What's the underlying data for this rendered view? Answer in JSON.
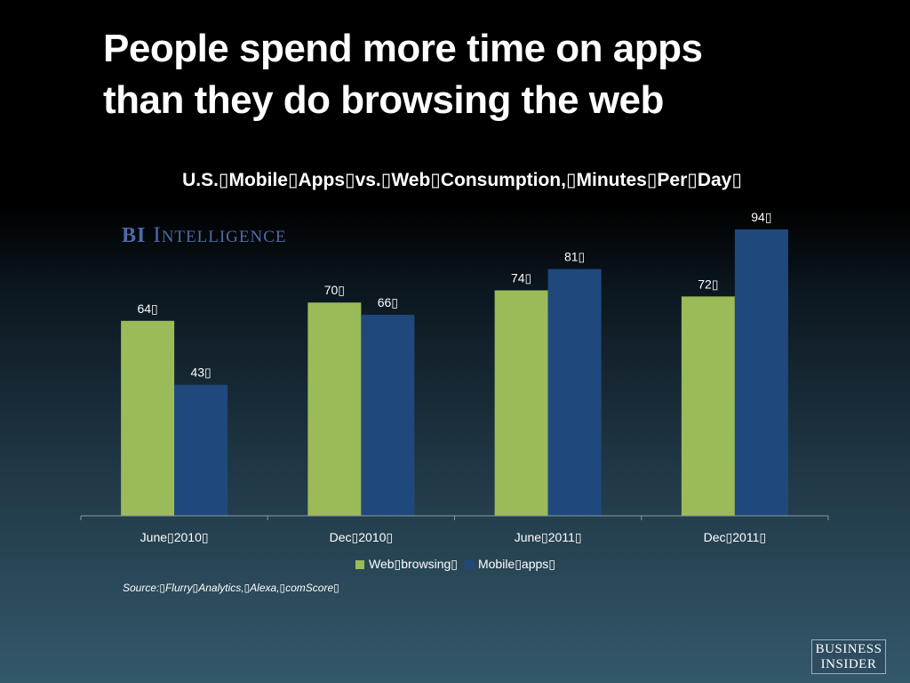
{
  "slide": {
    "title_line1": "People spend more time on apps",
    "title_line2": "than they do browsing the web"
  },
  "brand": {
    "bi": "BI",
    "intelligence_first": "I",
    "intelligence_rest": "NTELLIGENCE"
  },
  "source": "Source:▯Flurry▯Analytics,▯Alexa,▯comScore▯",
  "footer_logo": {
    "line1": "BUSINESS",
    "line2": "INSIDER"
  },
  "chart_data": {
    "type": "bar",
    "title": "U.S.▯Mobile▯Apps▯vs.▯Web▯Consumption,▯Minutes▯Per▯Day▯",
    "categories": [
      "June▯2010▯",
      "Dec▯2010▯",
      "June▯2011▯",
      "Dec▯2011▯"
    ],
    "series": [
      {
        "name": "Web▯browsing▯",
        "color": "#9bbb59",
        "values": [
          64,
          70,
          74,
          72
        ],
        "labels": [
          "64▯",
          "70▯",
          "74▯",
          "72▯"
        ]
      },
      {
        "name": "Mobile▯apps▯",
        "color": "#1f497d",
        "values": [
          43,
          66,
          81,
          94
        ],
        "labels": [
          "43▯",
          "66▯",
          "81▯",
          "94▯"
        ]
      }
    ],
    "ylim": [
      0,
      94
    ],
    "grid": false,
    "legend": "bottom"
  }
}
